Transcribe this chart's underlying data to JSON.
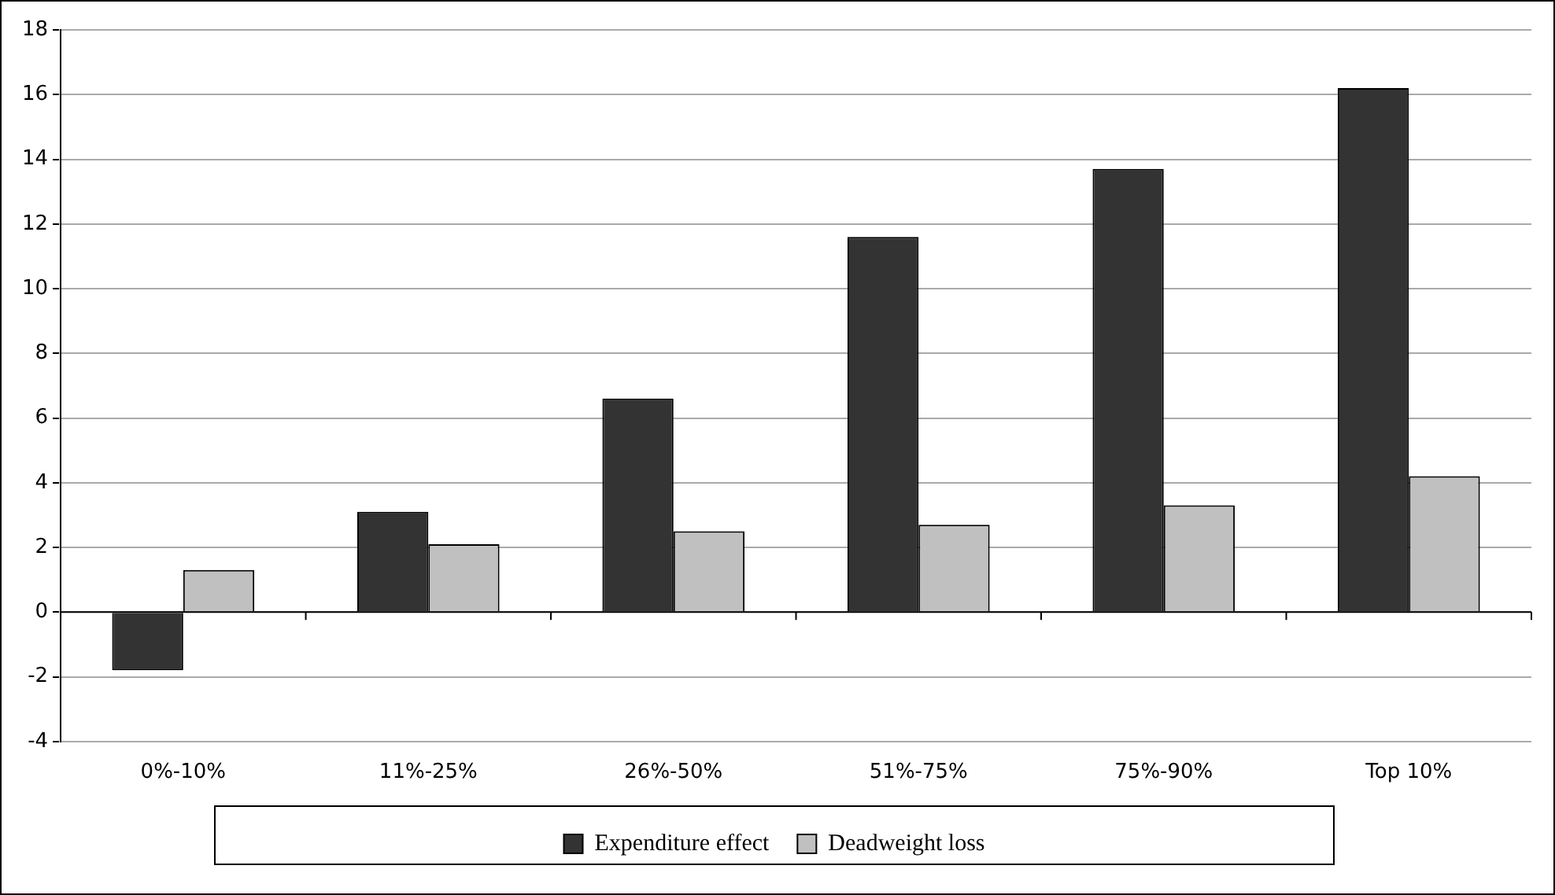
{
  "chart_data": {
    "type": "bar",
    "categories": [
      "0%-10%",
      "11%-25%",
      "26%-50%",
      "51%-75%",
      "75%-90%",
      "Top 10%"
    ],
    "series": [
      {
        "name": "Expenditure effect",
        "color": "#333333",
        "values": [
          -1.8,
          3.1,
          6.6,
          11.6,
          13.7,
          16.2
        ]
      },
      {
        "name": "Deadweight loss",
        "color": "#c0c0c0",
        "values": [
          1.3,
          2.1,
          2.5,
          2.7,
          3.3,
          4.2
        ]
      }
    ],
    "ylim": [
      -4,
      18
    ],
    "yticks": [
      -4,
      -2,
      0,
      2,
      4,
      6,
      8,
      10,
      12,
      14,
      16,
      18
    ],
    "grid": "y",
    "legend": "bottom"
  }
}
